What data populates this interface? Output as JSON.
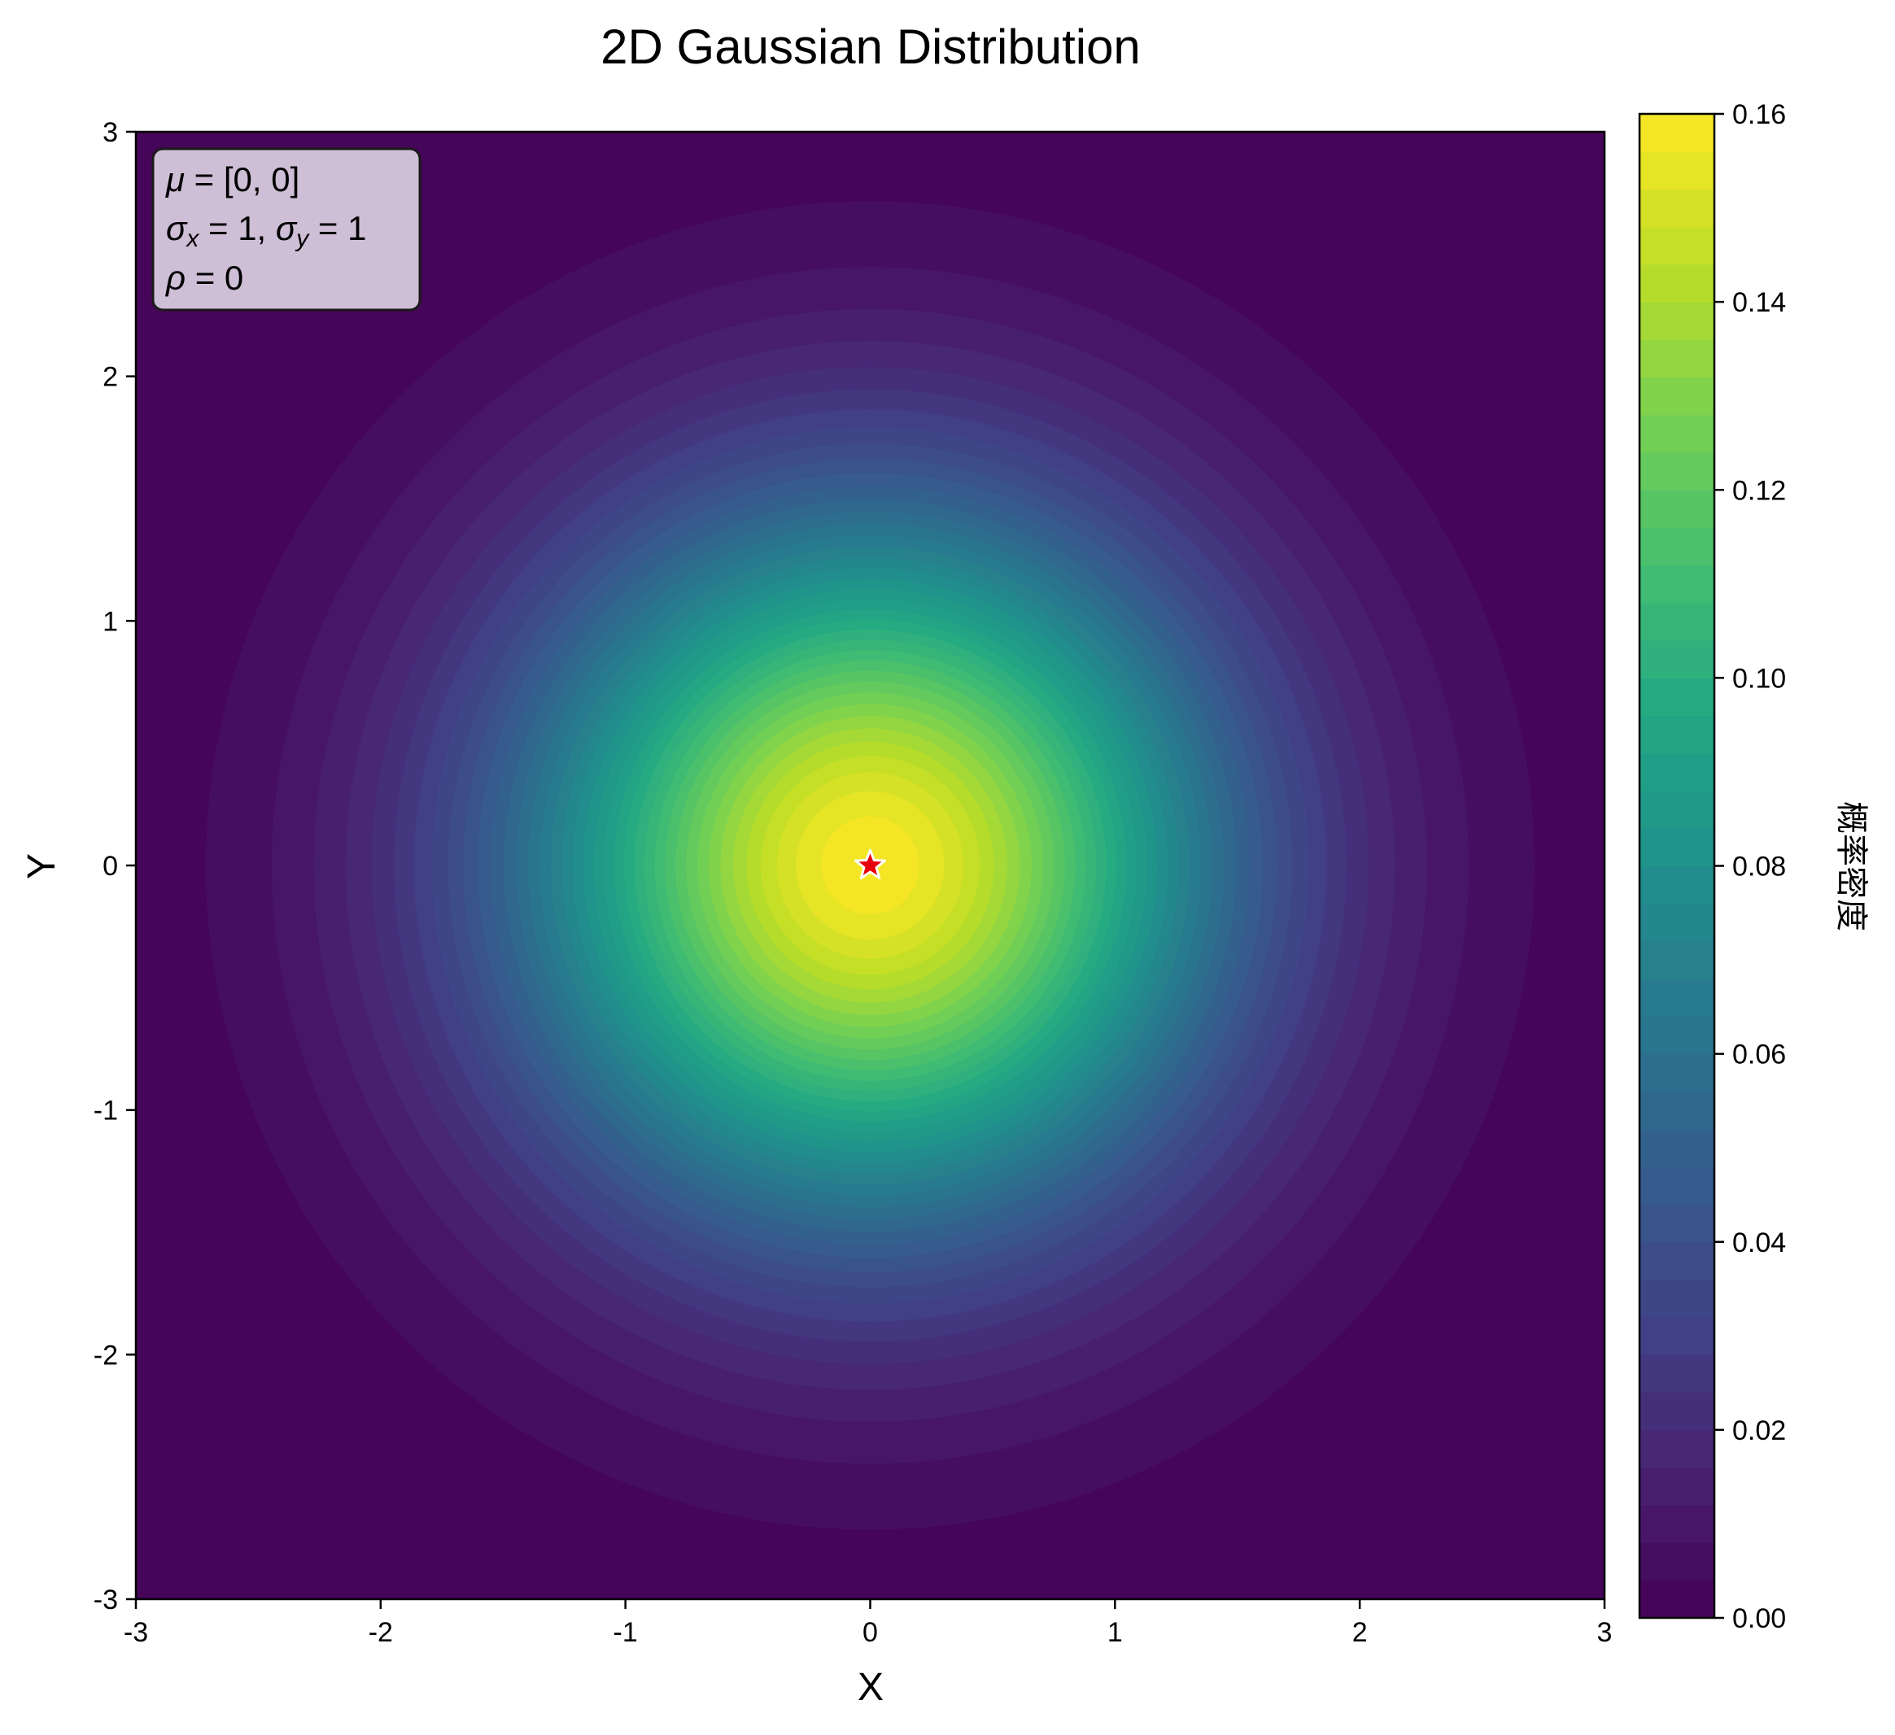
{
  "chart_data": {
    "type": "heatmap",
    "subtype": "filled-contour",
    "title": "2D Gaussian Distribution",
    "xlabel": "X",
    "ylabel": "Y",
    "xlim": [
      -3,
      3
    ],
    "ylim": [
      -3,
      3
    ],
    "x_ticks": [
      -3,
      -2,
      -1,
      0,
      1,
      2,
      3
    ],
    "x_tick_labels": [
      "-3",
      "-2",
      "-1",
      "0",
      "1",
      "2",
      "3"
    ],
    "y_ticks": [
      -3,
      -2,
      -1,
      0,
      1,
      2,
      3
    ],
    "y_tick_labels": [
      "-3",
      "-2",
      "-1",
      "0",
      "1",
      "2",
      "3"
    ],
    "distribution": {
      "mu": [
        0,
        0
      ],
      "sigma_x": 1,
      "sigma_y": 1,
      "rho": 0
    },
    "colormap": "viridis",
    "contour_levels": 40,
    "colorbar": {
      "label": "概率密度",
      "range": [
        0.0,
        0.16
      ],
      "ticks": [
        0.0,
        0.02,
        0.04,
        0.06,
        0.08,
        0.1,
        0.12,
        0.14,
        0.16
      ],
      "tick_labels": [
        "0.00",
        "0.02",
        "0.04",
        "0.06",
        "0.08",
        "0.10",
        "0.12",
        "0.14",
        "0.16"
      ]
    },
    "marker": {
      "shape": "star",
      "x": 0,
      "y": 0,
      "color": "#e8000b",
      "edge_color": "#ffffff"
    },
    "annotation": {
      "mu_sym": "μ",
      "mu_val": " = [0, 0]",
      "sigma_sym": "σ",
      "sub_x": "x",
      "sub_y": "y",
      "sigma_x_val": " = 1, ",
      "sigma_y_val": " = 1",
      "rho_sym": "ρ",
      "rho_val": " = 0",
      "box_color": "#d8cce0"
    },
    "grid": false
  }
}
